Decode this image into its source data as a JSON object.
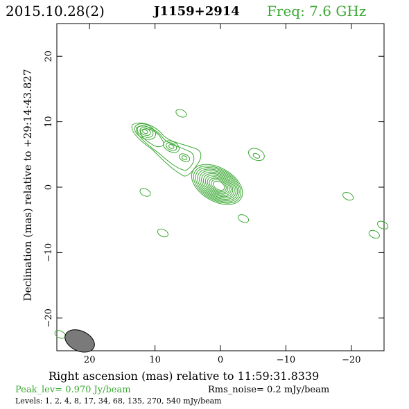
{
  "header": {
    "date": "2015.10.28(2)",
    "source": "J1159+2914",
    "frequency": "Freq: 7.6 GHz"
  },
  "axes": {
    "xlabel": "Right ascension (mas) relative to 11:59:31.8339",
    "ylabel": "Declination (mas) relative to +29:14:43.827"
  },
  "footer": {
    "peak": "Peak_lev=  0.970 Jy/beam",
    "rms": "Rms_noise=  0.2 mJy/beam",
    "levels": "Levels:   1,   2,   4,   8,  17,  34,  68, 135, 270, 540 mJy/beam"
  },
  "colors": {
    "contour": "#3aa832",
    "beam": "#7a7a7a"
  },
  "chart_data": {
    "type": "contour",
    "title": "J1159+2914",
    "xlabel": "Right ascension (mas) relative to 11:59:31.8339",
    "ylabel": "Declination (mas) relative to +29:14:43.827",
    "xlim": [
      25,
      -25
    ],
    "ylim": [
      -25,
      25
    ],
    "xticks": [
      20,
      10,
      0,
      -10,
      -20
    ],
    "yticks": [
      20,
      10,
      0,
      -10,
      -20
    ],
    "xtick_labels": [
      "20",
      "10",
      "0",
      "−10",
      "−20"
    ],
    "ytick_labels": [
      "20",
      "10",
      "0",
      "−10",
      "−20"
    ],
    "levels_mJy": [
      1,
      2,
      4,
      8,
      17,
      34,
      68,
      135,
      270,
      540
    ],
    "peak_Jy_per_beam": 0.97,
    "rms_mJy_per_beam": 0.2,
    "core": {
      "x": 0.2,
      "y": 0.2,
      "rings": 12,
      "angle_deg": -30
    },
    "jet_components": [
      {
        "x": 11.5,
        "y": 8.5,
        "rings": 4
      },
      {
        "x": 7.5,
        "y": 6.2,
        "rings": 3
      },
      {
        "x": 5.5,
        "y": 4.5,
        "rings": 2
      }
    ],
    "isolated_blobs": [
      {
        "x": 6.0,
        "y": 11.3
      },
      {
        "x": 11.5,
        "y": -0.8
      },
      {
        "x": 8.8,
        "y": -7.0
      },
      {
        "x": -5.5,
        "y": 5.0
      },
      {
        "x": -3.5,
        "y": -4.8
      },
      {
        "x": -19.5,
        "y": -1.4
      },
      {
        "x": -23.5,
        "y": -7.2
      },
      {
        "x": -24.8,
        "y": -5.8
      },
      {
        "x": 24.5,
        "y": -22.5
      }
    ],
    "beam": {
      "x": 21.5,
      "y": -23.5,
      "major_mas": 2.8,
      "minor_mas": 1.8,
      "angle_deg": 25
    },
    "grid": false
  }
}
